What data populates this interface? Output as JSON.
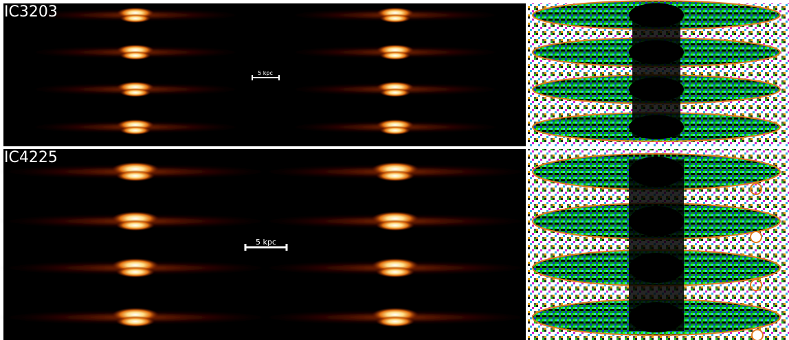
{
  "panels": [
    {
      "label": "IC3203",
      "scale_bar": "5 kpc"
    },
    {
      "label": "IC4225",
      "scale_bar": "5 kpc"
    }
  ]
}
